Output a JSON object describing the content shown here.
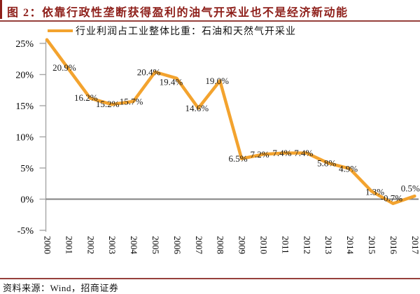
{
  "header": {
    "title": "图 2：依靠行政性垄断获得盈利的油气开采业也不是经济新动能"
  },
  "chart_data": {
    "type": "line",
    "title": "",
    "legend": [
      "行业利润占工业整体比重：石油和天然气开采业"
    ],
    "legend_position": "top-left",
    "categories": [
      "2000",
      "2001",
      "2002",
      "2003",
      "2004",
      "2005",
      "2006",
      "2007",
      "2008",
      "2009",
      "2010",
      "2011",
      "2012",
      "2013",
      "2014",
      "2015",
      "2016",
      "2017"
    ],
    "values": [
      25.6,
      20.9,
      16.2,
      15.2,
      15.7,
      20.4,
      19.4,
      14.6,
      19.0,
      6.5,
      7.2,
      7.4,
      7.4,
      5.8,
      4.9,
      1.3,
      -0.7,
      0.5
    ],
    "point_labels": [
      "",
      "20.9%",
      "16.2%",
      "15.2%",
      "15.7%",
      "20.4%",
      "19.4%",
      "14.6%",
      "19.0%",
      "6.5%",
      "7.2%",
      "7.4%",
      "7.4%",
      "5.8%",
      "4.9%",
      "1.3%",
      "-0.7%",
      "0.5%"
    ],
    "y_tick_labels": [
      "25%",
      "20%",
      "15%",
      "10%",
      "5%",
      "0%",
      "-5%"
    ],
    "y_tick_values": [
      25,
      20,
      15,
      10,
      5,
      0,
      -5
    ],
    "ylim": [
      -5,
      25
    ],
    "xlabel": "",
    "ylabel": "",
    "grid": false,
    "line_color": "#F3A32E",
    "axis_color": "#A6A6A6",
    "zero_line_color": "#808080",
    "label_color": "#1A1A1A"
  },
  "footer": {
    "source": "资料来源：Wind，招商证券"
  },
  "colors": {
    "title_red": "#8E1F1A",
    "rule_red": "#96403C"
  }
}
